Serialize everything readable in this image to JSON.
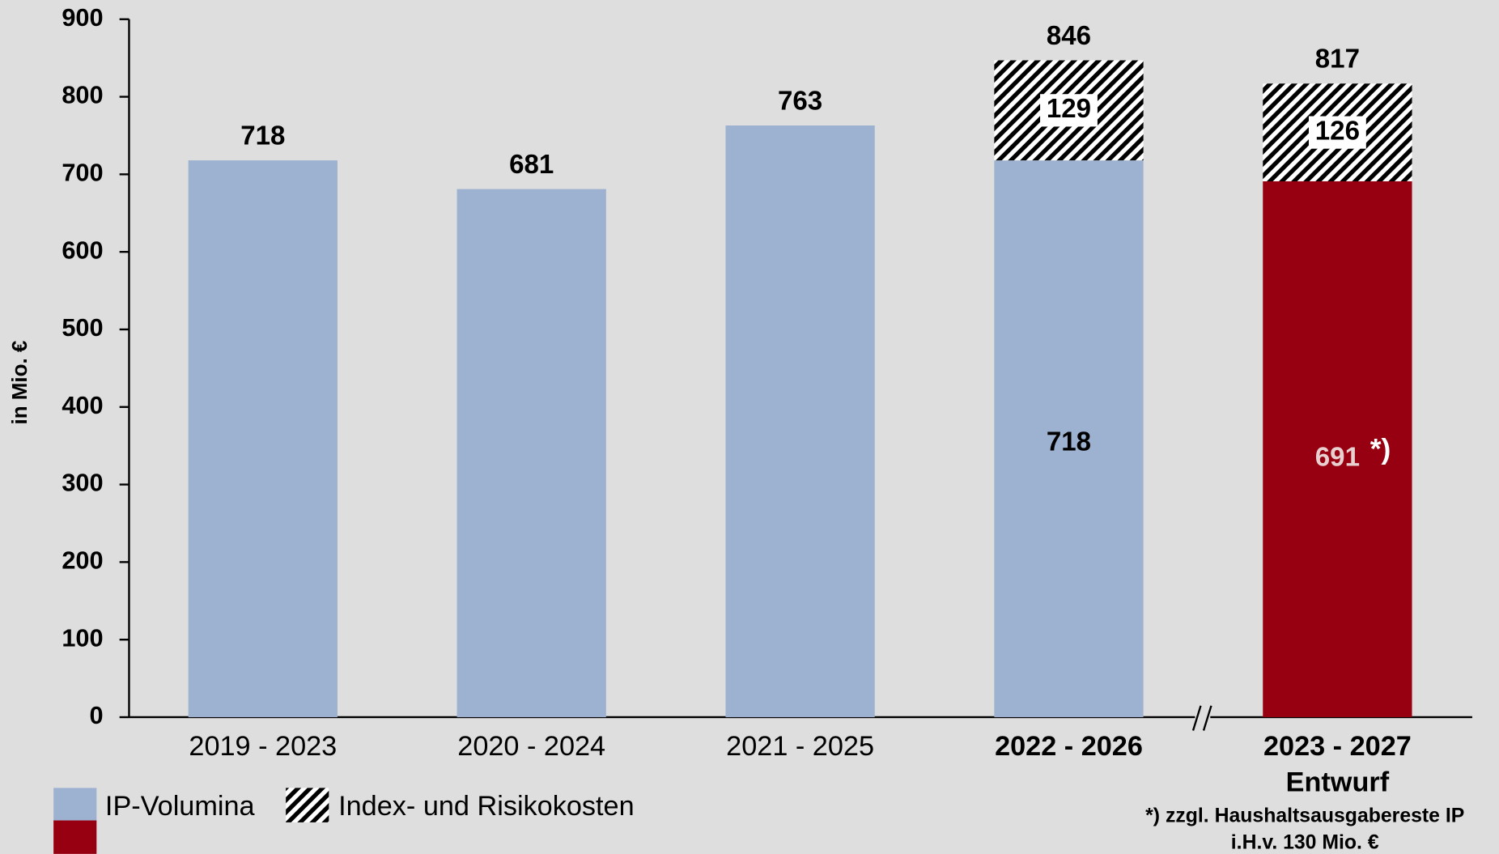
{
  "chart_data": {
    "type": "stacked_bar",
    "y_label": "in Mio. €",
    "categories": [
      "2019 - 2023",
      "2020 - 2024",
      "2021 - 2025",
      "2022 - 2026",
      "2023 - 2027"
    ],
    "category_sublabels": [
      null,
      null,
      null,
      null,
      "Entwurf"
    ],
    "category_bold": [
      false,
      false,
      false,
      true,
      true
    ],
    "series": [
      {
        "name": "IP-Volumina",
        "color": "#9db1d0",
        "colors": [
          "#9db1d0",
          "#9db1d0",
          "#9db1d0",
          "#9db1d0",
          "#960010"
        ],
        "values": [
          718,
          681,
          763,
          718,
          691
        ]
      },
      {
        "name": "Index- und Risikokosten",
        "color": "#000000",
        "pattern": "hatch",
        "values": [
          null,
          null,
          null,
          129,
          126
        ]
      }
    ],
    "totals": [
      null,
      null,
      null,
      846,
      817
    ],
    "annotations": [
      "*)"
    ],
    "footnote": [
      "*) zzgl. Haushaltsausgabereste IP",
      "i.H.v. 130 Mio. €"
    ],
    "ylim": [
      0,
      900
    ],
    "yticks": [
      0,
      100,
      200,
      300,
      400,
      500,
      600,
      700,
      800,
      900
    ],
    "axis_break": true
  }
}
